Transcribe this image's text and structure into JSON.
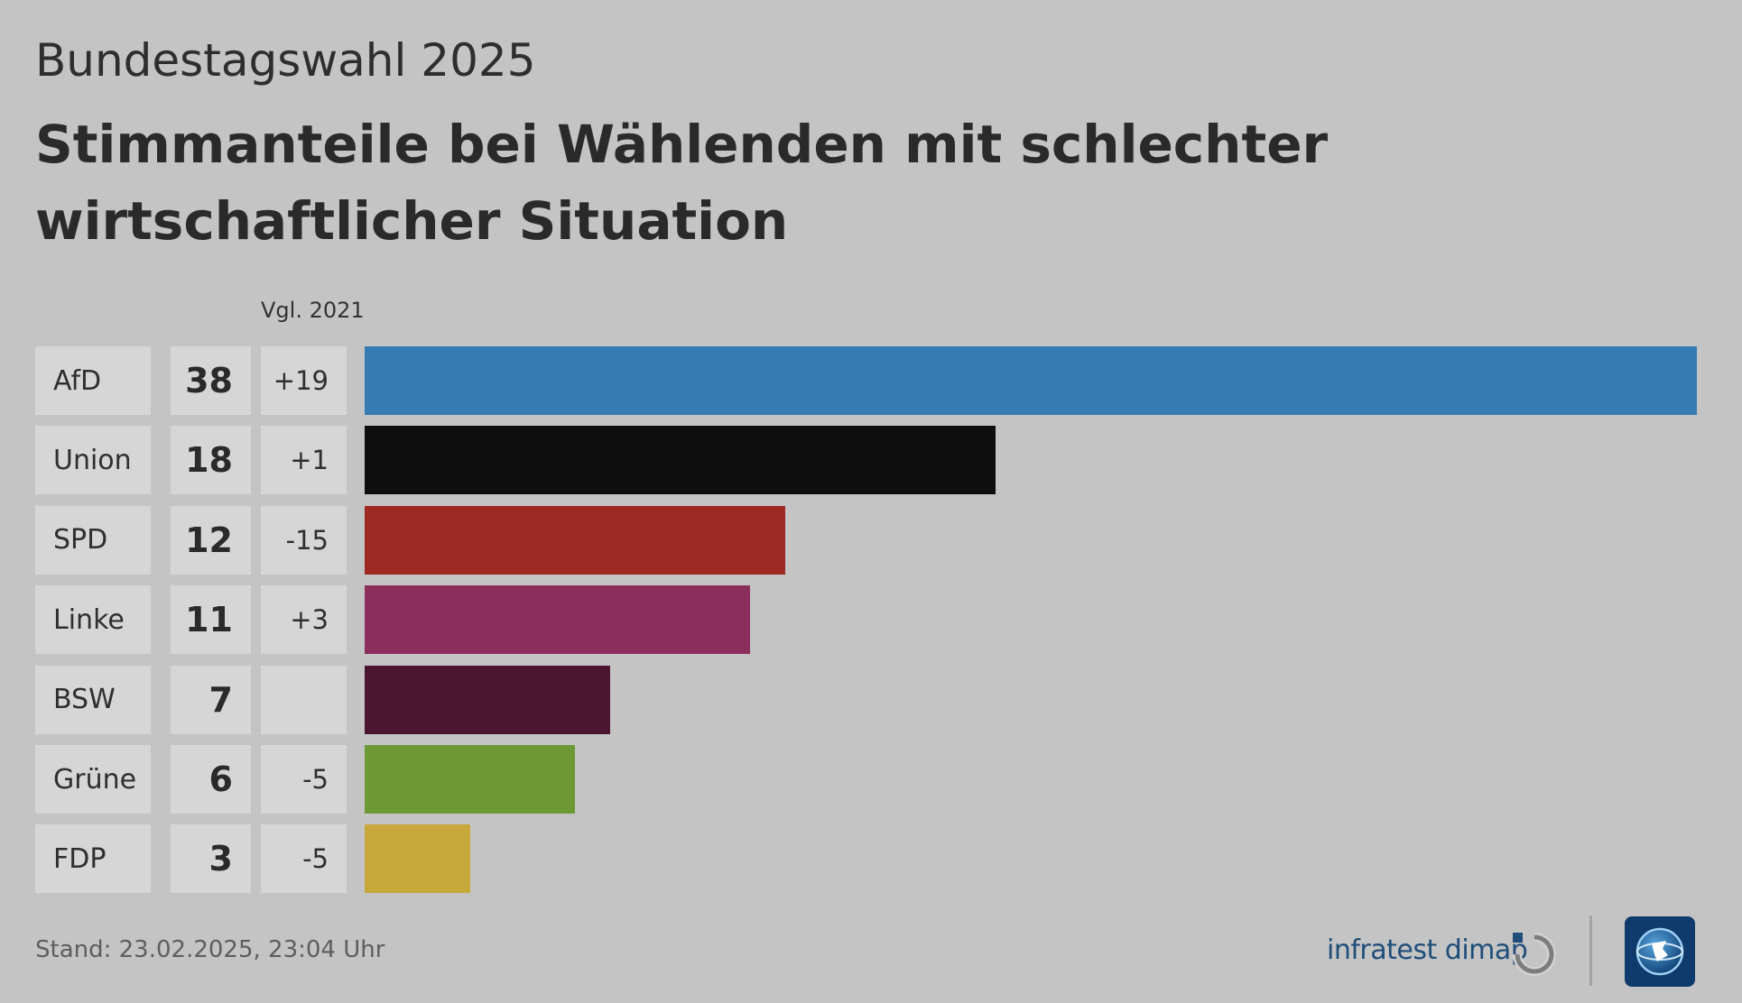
{
  "header": {
    "supertitle": "Bundestagswahl 2025",
    "title": "Stimmanteile bei Wählenden mit schlechter wirtschaftlicher Situation",
    "compare_label": "Vgl. 2021"
  },
  "chart_data": {
    "type": "bar",
    "orientation": "horizontal",
    "title": "Stimmanteile bei Wählenden mit schlechter wirtschaftlicher Situation",
    "categories": [
      "AfD",
      "Union",
      "SPD",
      "Linke",
      "BSW",
      "Grüne",
      "FDP"
    ],
    "values": [
      38,
      18,
      12,
      11,
      7,
      6,
      3
    ],
    "change_label": "Vgl. 2021",
    "changes": [
      "+19",
      "+1",
      "-15",
      "+3",
      "",
      "-5",
      "-5"
    ],
    "colors": [
      "#357bb1",
      "#0e0e0e",
      "#9e2823",
      "#8b2e5c",
      "#4d1630",
      "#6c9933",
      "#c8a83a"
    ],
    "xlim": [
      0,
      38
    ],
    "grid": false,
    "legend": "none"
  },
  "footer": {
    "stand": "Stand:  23.02.2025, 23:04 Uhr",
    "source": "infratest dimap",
    "source_logo_icon": "infratest-dimap-logo-icon",
    "brand_logo_icon": "tagesschau-globe-logo-icon"
  }
}
